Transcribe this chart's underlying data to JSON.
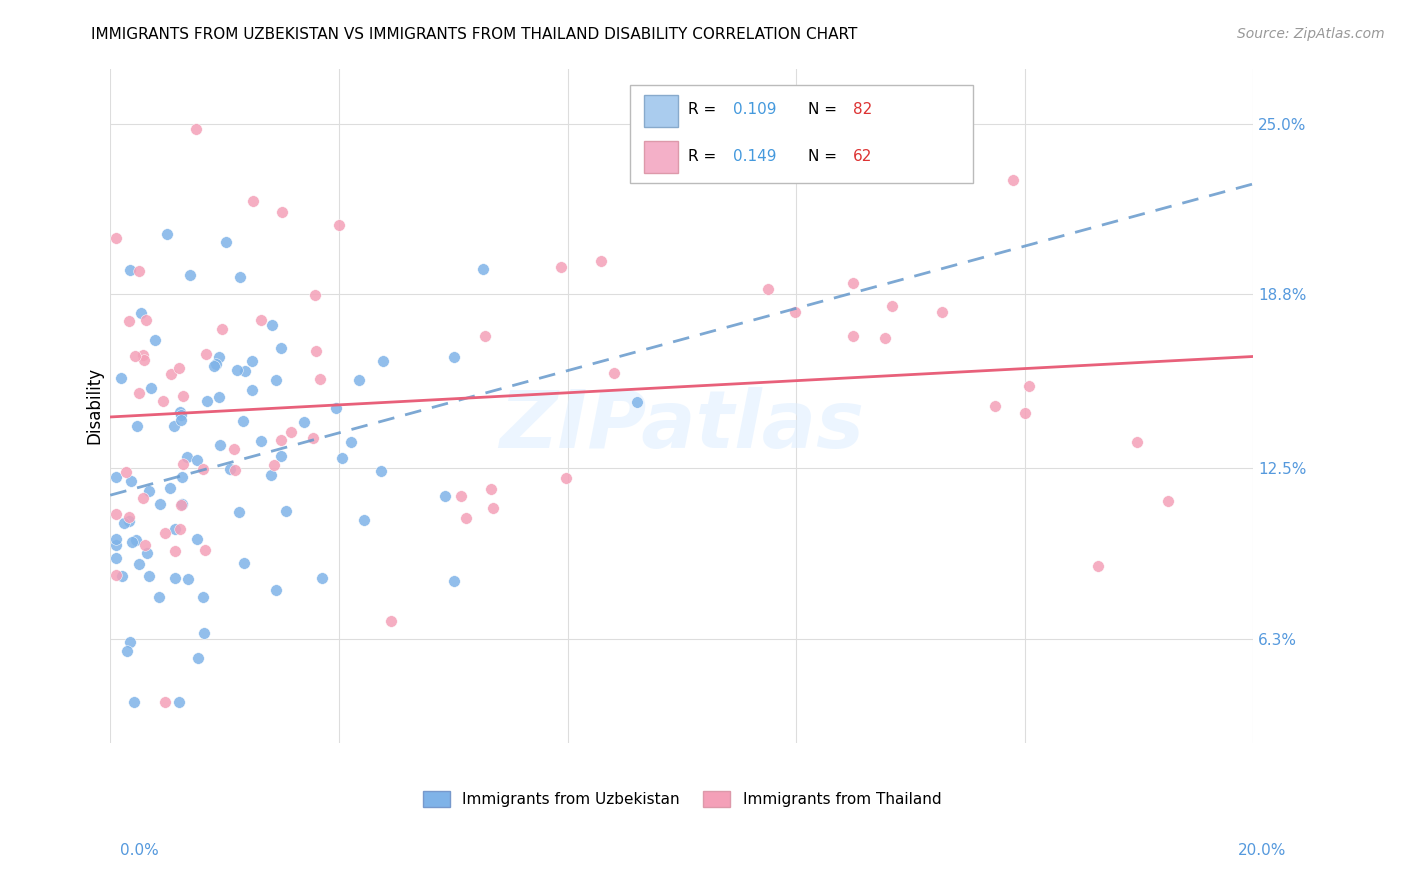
{
  "title": "IMMIGRANTS FROM UZBEKISTAN VS IMMIGRANTS FROM THAILAND DISABILITY CORRELATION CHART",
  "source": "Source: ZipAtlas.com",
  "ylabel": "Disability",
  "ytick_labels": [
    "6.3%",
    "12.5%",
    "18.8%",
    "25.0%"
  ],
  "ytick_values": [
    0.063,
    0.125,
    0.188,
    0.25
  ],
  "xmin": 0.0,
  "xmax": 0.2,
  "ymin": 0.025,
  "ymax": 0.27,
  "color_uzbekistan": "#7fb3e8",
  "color_thailand": "#f4a0b8",
  "line_color_uzbekistan": "#7fb3e8",
  "line_color_thailand": "#f080a0",
  "watermark": "ZIPatlas",
  "legend_box_color": "#cccccc",
  "title_fontsize": 11,
  "source_fontsize": 10,
  "tick_label_color": "#5599dd",
  "r1_color": "#4499dd",
  "n1_color": "#dd3333",
  "r2_color": "#4499dd",
  "n2_color": "#dd3333"
}
